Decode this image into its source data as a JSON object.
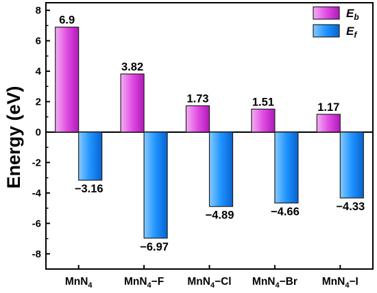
{
  "chart_data": {
    "type": "bar",
    "categories": [
      "MnN4",
      "MnN4−F",
      "MnN4−Cl",
      "MnN4−Br",
      "MnN4−I"
    ],
    "category_parts": [
      {
        "base": "MnN",
        "sub": "4",
        "suffix": ""
      },
      {
        "base": "MnN",
        "sub": "4",
        "suffix": "−F"
      },
      {
        "base": "MnN",
        "sub": "4",
        "suffix": "−Cl"
      },
      {
        "base": "MnN",
        "sub": "4",
        "suffix": "−Br"
      },
      {
        "base": "MnN",
        "sub": "4",
        "suffix": "−I"
      }
    ],
    "series": [
      {
        "name": "Eb",
        "name_main": "E",
        "name_sub": "b",
        "values": [
          6.9,
          3.82,
          1.73,
          1.51,
          1.17
        ],
        "labels": [
          "6.9",
          "3.82",
          "1.73",
          "1.51",
          "1.17"
        ],
        "color": "#e040e0",
        "gradient": [
          "#f3aef3",
          "#c01fc6"
        ]
      },
      {
        "name": "Ef",
        "name_main": "E",
        "name_sub": "f",
        "values": [
          -3.16,
          -6.97,
          -4.89,
          -4.66,
          -4.33
        ],
        "labels": [
          "−3.16",
          "−6.97",
          "−4.89",
          "−4.66",
          "−4.33"
        ],
        "color": "#1e90ff",
        "gradient": [
          "#7cc4ff",
          "#0a6fe0"
        ]
      }
    ],
    "ylabel": "Energy (eV)",
    "xlabel": "",
    "ylim": [
      -9,
      8.5
    ],
    "yticks": [
      -8,
      -6,
      -4,
      -2,
      0,
      2,
      4,
      6,
      8
    ],
    "ytick_labels": [
      "-8",
      "-6",
      "-4",
      "-2",
      "0",
      "2",
      "4",
      "6",
      "8"
    ],
    "legend_position": "top-right",
    "grid": false
  }
}
